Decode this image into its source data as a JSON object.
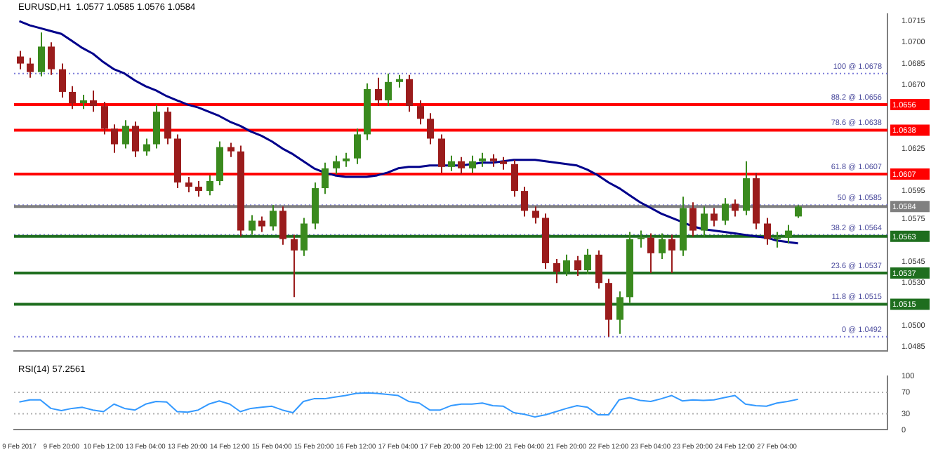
{
  "chart_data": [
    {
      "type": "candlestick",
      "title": "EURUSD,H1  1.0577 1.0585 1.0576 1.0584",
      "categories": [
        null,
        null,
        null,
        null,
        null,
        null,
        null,
        null,
        null,
        null,
        null,
        null,
        null,
        null,
        null,
        null,
        null,
        null,
        null,
        null,
        null,
        null,
        null,
        null,
        null,
        null,
        null,
        null,
        null,
        null,
        null,
        null,
        null,
        null,
        null,
        null,
        null,
        null,
        null,
        null,
        null,
        null,
        null,
        null,
        null,
        null,
        null,
        null,
        null,
        null,
        null,
        null,
        null,
        null,
        null,
        null,
        null,
        null,
        null,
        null,
        null,
        null,
        null,
        null,
        null,
        null,
        null,
        null,
        null,
        null,
        null,
        null,
        null,
        null,
        null,
        null,
        null,
        null,
        null,
        null,
        null,
        null,
        null
      ],
      "ohlc": [
        [
          1.069,
          1.0694,
          1.0681,
          1.0685
        ],
        [
          1.0685,
          1.0689,
          1.0675,
          1.0679
        ],
        [
          1.0679,
          1.0707,
          1.0676,
          1.0697
        ],
        [
          1.0697,
          1.07,
          1.0677,
          1.0681
        ],
        [
          1.0681,
          1.0685,
          1.0661,
          1.0665
        ],
        [
          1.0665,
          1.0669,
          1.0653,
          1.0657
        ],
        [
          1.0657,
          1.0663,
          1.0653,
          1.0659
        ],
        [
          1.0659,
          1.0666,
          1.0651,
          1.0655
        ],
        [
          1.0655,
          1.0658,
          1.0635,
          1.0639
        ],
        [
          1.0639,
          1.0642,
          1.0622,
          1.0628
        ],
        [
          1.0628,
          1.0645,
          1.0625,
          1.0641
        ],
        [
          1.0641,
          1.0644,
          1.0619,
          1.0623
        ],
        [
          1.0623,
          1.0632,
          1.062,
          1.0628
        ],
        [
          1.0628,
          1.0656,
          1.0625,
          1.0651
        ],
        [
          1.0651,
          1.0654,
          1.0628,
          1.0632
        ],
        [
          1.0632,
          1.0635,
          1.0597,
          1.0601
        ],
        [
          1.0601,
          1.0605,
          1.0594,
          1.0598
        ],
        [
          1.0598,
          1.0602,
          1.0591,
          1.0595
        ],
        [
          1.0595,
          1.0606,
          1.0592,
          1.0602
        ],
        [
          1.0602,
          1.063,
          1.0599,
          1.0626
        ],
        [
          1.0626,
          1.0629,
          1.0619,
          1.0623
        ],
        [
          1.0623,
          1.0627,
          1.0563,
          1.0567
        ],
        [
          1.0567,
          1.0578,
          1.0564,
          1.0574
        ],
        [
          1.0574,
          1.0577,
          1.0566,
          1.057
        ],
        [
          1.057,
          1.0585,
          1.0567,
          1.0581
        ],
        [
          1.0581,
          1.0584,
          1.0557,
          1.0561
        ],
        [
          1.0561,
          1.0564,
          1.052,
          1.0553
        ],
        [
          1.0553,
          1.0576,
          1.0549,
          1.0572
        ],
        [
          1.0572,
          1.0601,
          1.0568,
          1.0597
        ],
        [
          1.0597,
          1.0615,
          1.0593,
          1.0611
        ],
        [
          1.0611,
          1.062,
          1.0607,
          1.0616
        ],
        [
          1.0616,
          1.0622,
          1.0612,
          1.0618
        ],
        [
          1.0618,
          1.0639,
          1.0614,
          1.0635
        ],
        [
          1.0635,
          1.0671,
          1.0631,
          1.0667
        ],
        [
          1.0667,
          1.0675,
          1.0655,
          1.0659
        ],
        [
          1.0659,
          1.0678,
          1.0655,
          1.0672
        ],
        [
          1.0672,
          1.0677,
          1.0668,
          1.0674
        ],
        [
          1.0674,
          1.0677,
          1.0651,
          1.0655
        ],
        [
          1.0655,
          1.0659,
          1.0642,
          1.0646
        ],
        [
          1.0646,
          1.065,
          1.0628,
          1.0632
        ],
        [
          1.0632,
          1.0635,
          1.0608,
          1.0612
        ],
        [
          1.0612,
          1.062,
          1.0609,
          1.0616
        ],
        [
          1.0616,
          1.0619,
          1.0607,
          1.0611
        ],
        [
          1.0611,
          1.062,
          1.0608,
          1.0616
        ],
        [
          1.0616,
          1.0622,
          1.0612,
          1.0618
        ],
        [
          1.0618,
          1.0621,
          1.0612,
          1.0616
        ],
        [
          1.0616,
          1.0619,
          1.061,
          1.0614
        ],
        [
          1.0614,
          1.0617,
          1.0591,
          1.0595
        ],
        [
          1.0595,
          1.0598,
          1.0577,
          1.0581
        ],
        [
          1.0581,
          1.0584,
          1.0572,
          1.0576
        ],
        [
          1.0576,
          1.0579,
          1.054,
          1.0544
        ],
        [
          1.0544,
          1.0547,
          1.053,
          1.0538
        ],
        [
          1.0538,
          1.055,
          1.0535,
          1.0546
        ],
        [
          1.0546,
          1.0549,
          1.0535,
          1.0539
        ],
        [
          1.0539,
          1.0554,
          1.0536,
          1.055
        ],
        [
          1.055,
          1.0553,
          1.0526,
          1.053
        ],
        [
          1.053,
          1.0533,
          1.0492,
          1.0504
        ],
        [
          1.0504,
          1.0524,
          1.0494,
          1.052
        ],
        [
          1.052,
          1.0566,
          1.0516,
          1.0561
        ],
        [
          1.0561,
          1.0567,
          1.0555,
          1.0562
        ],
        [
          1.0562,
          1.0565,
          1.0537,
          1.0551
        ],
        [
          1.0551,
          1.0565,
          1.0547,
          1.0561
        ],
        [
          1.0561,
          1.0564,
          1.0537,
          1.0553
        ],
        [
          1.0553,
          1.0591,
          1.0549,
          1.0583
        ],
        [
          1.0583,
          1.0587,
          1.0563,
          1.0567
        ],
        [
          1.0567,
          1.0584,
          1.0563,
          1.0579
        ],
        [
          1.0579,
          1.0583,
          1.057,
          1.0574
        ],
        [
          1.0574,
          1.059,
          1.0571,
          1.0586
        ],
        [
          1.0586,
          1.0589,
          1.0577,
          1.0581
        ],
        [
          1.0581,
          1.0616,
          1.0578,
          1.0604
        ],
        [
          1.0604,
          1.0608,
          1.0568,
          1.0572
        ],
        [
          1.0572,
          1.0576,
          1.0557,
          1.0561
        ],
        [
          1.0561,
          1.0566,
          1.0555,
          1.0562
        ],
        [
          1.0562,
          1.0571,
          1.0558,
          1.0567
        ],
        [
          1.0577,
          1.0585,
          1.0576,
          1.0584
        ],
        null,
        null,
        null,
        null,
        null,
        null,
        null,
        null
      ],
      "series": [
        {
          "type": "line",
          "color": "#00008b",
          "values": [
            1.0715,
            1.0712,
            1.071,
            1.0708,
            1.0706,
            1.0701,
            1.0696,
            1.0692,
            1.0686,
            1.0681,
            1.0678,
            1.0673,
            1.0669,
            1.0666,
            1.0662,
            1.0659,
            1.0656,
            1.0654,
            1.0651,
            1.0648,
            1.0644,
            1.0641,
            1.0637,
            1.0634,
            1.063,
            1.0625,
            1.0621,
            1.0616,
            1.0611,
            1.0608,
            1.0606,
            1.0605,
            1.0605,
            1.0605,
            1.0606,
            1.0608,
            1.0611,
            1.0612,
            1.0612,
            1.0613,
            1.0613,
            1.0613,
            1.0613,
            1.0614,
            1.0615,
            1.0615,
            1.0616,
            1.0617,
            1.0617,
            1.0617,
            1.0616,
            1.0615,
            1.0614,
            1.0613,
            1.061,
            1.0606,
            1.0601,
            1.0597,
            1.0592,
            1.0587,
            1.0583,
            1.0579,
            1.0576,
            1.0573,
            1.057,
            1.0568,
            1.0567,
            1.0566,
            1.0565,
            1.0564,
            1.0563,
            1.0562,
            1.056,
            1.0559,
            1.0558,
            null,
            null,
            null,
            null,
            null,
            null,
            null,
            null
          ]
        }
      ],
      "ylim": [
        1.0482,
        1.072
      ],
      "yticks": [
        1.0715,
        {
          "value": 1.07,
          "label": "1.0700"
        },
        1.0685,
        {
          "value": 1.067,
          "label": "1.0670"
        },
        1.0625,
        1.0595,
        1.0575,
        1.0545,
        {
          "value": 1.053,
          "label": "1.0530"
        },
        {
          "value": 1.05,
          "label": "1.0500"
        },
        1.0485
      ],
      "ref_lines": [
        {
          "axis": "y",
          "value": 1.0678,
          "label": null,
          "color": "#7b7bd9",
          "line_style": "dotted"
        },
        {
          "axis": "y",
          "value": 1.0656,
          "label": "1.0656",
          "color": "#ff0000",
          "line_style": "solid"
        },
        {
          "axis": "y",
          "value": 1.0638,
          "label": "1.0638",
          "color": "#ff0000",
          "line_style": "solid"
        },
        {
          "axis": "y",
          "value": 1.0607,
          "label": "1.0607",
          "color": "#ff0000",
          "line_style": "solid"
        },
        {
          "axis": "y",
          "value": 1.0585,
          "label": null,
          "color": "#7b7bd9",
          "line_style": "dotted"
        },
        {
          "axis": "y",
          "value": 1.0584,
          "label": "1.0584",
          "color": "#808080",
          "line_style": "solid"
        },
        {
          "axis": "y",
          "value": 1.0564,
          "label": null,
          "color": "#7b7bd9",
          "line_style": "dotted"
        },
        {
          "axis": "y",
          "value": 1.0563,
          "label": "1.0563",
          "color": "#1e6e1e",
          "line_style": "solid"
        },
        {
          "axis": "y",
          "value": 1.0537,
          "label": "1.0537",
          "color": "#1e6e1e",
          "line_style": "solid"
        },
        {
          "axis": "y",
          "value": 1.0515,
          "label": "1.0515",
          "color": "#1e6e1e",
          "line_style": "solid"
        },
        {
          "axis": "y",
          "value": 1.0492,
          "label": null,
          "color": "#7b7bd9",
          "line_style": "dotted"
        }
      ],
      "annotations": [
        {
          "text": "100 @ 1.0678",
          "y": 1.0678
        },
        {
          "text": "88.2 @ 1.0656",
          "y": 1.0656
        },
        {
          "text": "78.6 @ 1.0638",
          "y": 1.0638
        },
        {
          "text": "61.8 @ 1.0607",
          "y": 1.0607
        },
        {
          "text": "50 @ 1.0585",
          "y": 1.0585
        },
        {
          "text": "38.2 @ 1.0564",
          "y": 1.0564
        },
        {
          "text": "23.6 @ 1.0537",
          "y": 1.0537
        },
        {
          "text": "11.8 @ 1.0515",
          "y": 1.0515
        },
        {
          "text": "0 @ 1.0492",
          "y": 1.0492
        }
      ],
      "tick_labels": "y"
    },
    {
      "type": "line",
      "title": "RSI(14) 57.2561",
      "color": "#3399ff",
      "categories": [
        "9 Feb 2017",
        null,
        null,
        null,
        "9 Feb 20:00",
        null,
        null,
        null,
        "10 Feb 12:00",
        null,
        null,
        null,
        "13 Feb 04:00",
        null,
        null,
        null,
        "13 Feb 20:00",
        null,
        null,
        null,
        "14 Feb 12:00",
        null,
        null,
        null,
        "15 Feb 04:00",
        null,
        null,
        null,
        "15 Feb 20:00",
        null,
        null,
        null,
        "16 Feb 12:00",
        null,
        null,
        null,
        "17 Feb 04:00",
        null,
        null,
        null,
        "17 Feb 20:00",
        null,
        null,
        null,
        "20 Feb 12:00",
        null,
        null,
        null,
        "21 Feb 04:00",
        null,
        null,
        null,
        "21 Feb 20:00",
        null,
        null,
        null,
        "22 Feb 12:00",
        null,
        null,
        null,
        "23 Feb 04:00",
        null,
        null,
        null,
        "23 Feb 20:00",
        null,
        null,
        null,
        "24 Feb 12:00",
        null,
        null,
        null,
        "27 Feb 04:00",
        null,
        null,
        null,
        null,
        null,
        null,
        null,
        null,
        null,
        null
      ],
      "values": [
        52,
        56,
        56,
        40,
        36,
        40,
        42,
        37,
        34,
        48,
        40,
        37,
        48,
        53,
        52,
        34,
        33,
        37,
        48,
        54,
        48,
        34,
        40,
        42,
        44,
        37,
        32,
        53,
        58,
        58,
        61,
        64,
        68,
        69,
        68,
        66,
        64,
        53,
        50,
        37,
        37,
        45,
        48,
        48,
        50,
        45,
        44,
        32,
        29,
        24,
        28,
        34,
        40,
        45,
        42,
        28,
        28,
        56,
        60,
        55,
        53,
        58,
        64,
        54,
        56,
        55,
        56,
        60,
        64,
        48,
        45,
        44,
        50,
        53,
        57,
        null,
        null,
        null,
        null,
        null,
        null,
        null,
        null
      ],
      "ylim": [
        0,
        100
      ],
      "yticks": [
        0,
        30,
        70,
        100
      ],
      "ref_lines": [
        {
          "axis": "y",
          "value": 30,
          "label": null,
          "color": "#b0b0b0",
          "line_style": "dotted"
        },
        {
          "axis": "y",
          "value": 70,
          "label": null,
          "color": "#b0b0b0",
          "line_style": "dotted"
        }
      ]
    }
  ]
}
